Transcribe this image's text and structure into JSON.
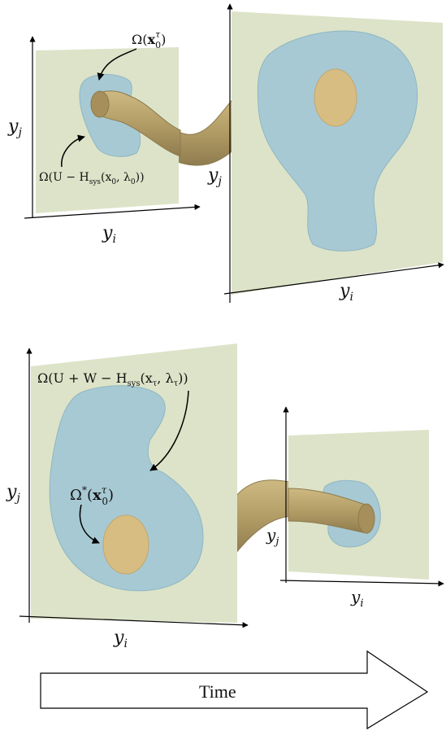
{
  "colors": {
    "panel": "#dde3c8",
    "region": "#a7c9d3",
    "region_stroke": "#8eb6c4",
    "core": "#d8bd83",
    "core_stroke": "#c4a66a",
    "tube": "#b9a46f",
    "tube_stroke": "#8c7a4e",
    "axis": "#000000"
  },
  "top_small": {
    "axis_x": "y",
    "axis_x_sub": "i",
    "axis_y": "y",
    "axis_y_sub": "j",
    "omega_x": {
      "prefix": "Ω(",
      "bold": "x",
      "sup": "τ",
      "sub": "0",
      "suffix": ")"
    },
    "omega_u": {
      "a": "Ω(U − H",
      "sub": "sys",
      "b": "(x",
      "sub0": "0",
      "c": ", λ",
      "sub1": "0",
      "d": "))"
    }
  },
  "top_large": {
    "axis_x": "y",
    "axis_x_sub": "i",
    "axis_y": "y",
    "axis_y_sub": "j"
  },
  "bottom_large": {
    "axis_x": "y",
    "axis_x_sub": "i",
    "axis_y": "y",
    "axis_y_sub": "j",
    "omega_uw": {
      "a": "Ω(U + W − H",
      "sub": "sys",
      "b": "(x",
      "subt": "τ",
      "c": ", λ",
      "subt2": "τ",
      "d": "))"
    },
    "omega_star": {
      "prefix": "Ω",
      "sup_star": "*",
      "paren": "(",
      "bold": "x",
      "sup": "τ",
      "sub": "0",
      "suffix": ")"
    }
  },
  "bottom_small": {
    "axis_x": "y",
    "axis_x_sub": "i",
    "axis_y": "y",
    "axis_y_sub": "j"
  },
  "time_arrow": {
    "label": "Time"
  }
}
